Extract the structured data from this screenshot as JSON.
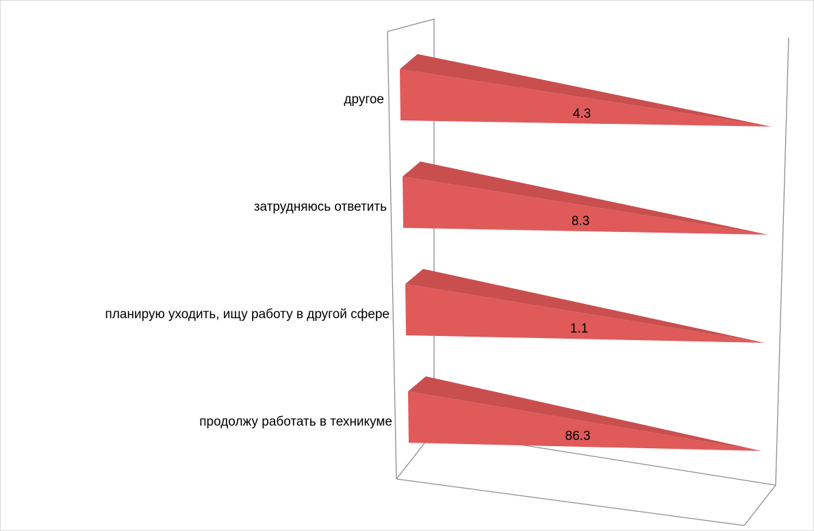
{
  "chart_data": {
    "type": "bar",
    "orientation": "horizontal",
    "style": "3d-wedge",
    "categories": [
      "продолжу работать в техникуме",
      "планирую уходить, ищу работу в другой сфере",
      "затрудняюсь ответить",
      "другое"
    ],
    "values": [
      86.3,
      1.1,
      8.3,
      4.3
    ],
    "data_labels": [
      "86.3",
      "1.1",
      "8.3",
      "4.3"
    ],
    "title": "",
    "xlabel": "",
    "ylabel": "",
    "grid": false,
    "legend": "none",
    "colors": {
      "bar_front": "#e05a5a",
      "bar_top": "#c94f4f",
      "axis": "#8c8c8c",
      "frame": "#d9d9d9"
    }
  }
}
